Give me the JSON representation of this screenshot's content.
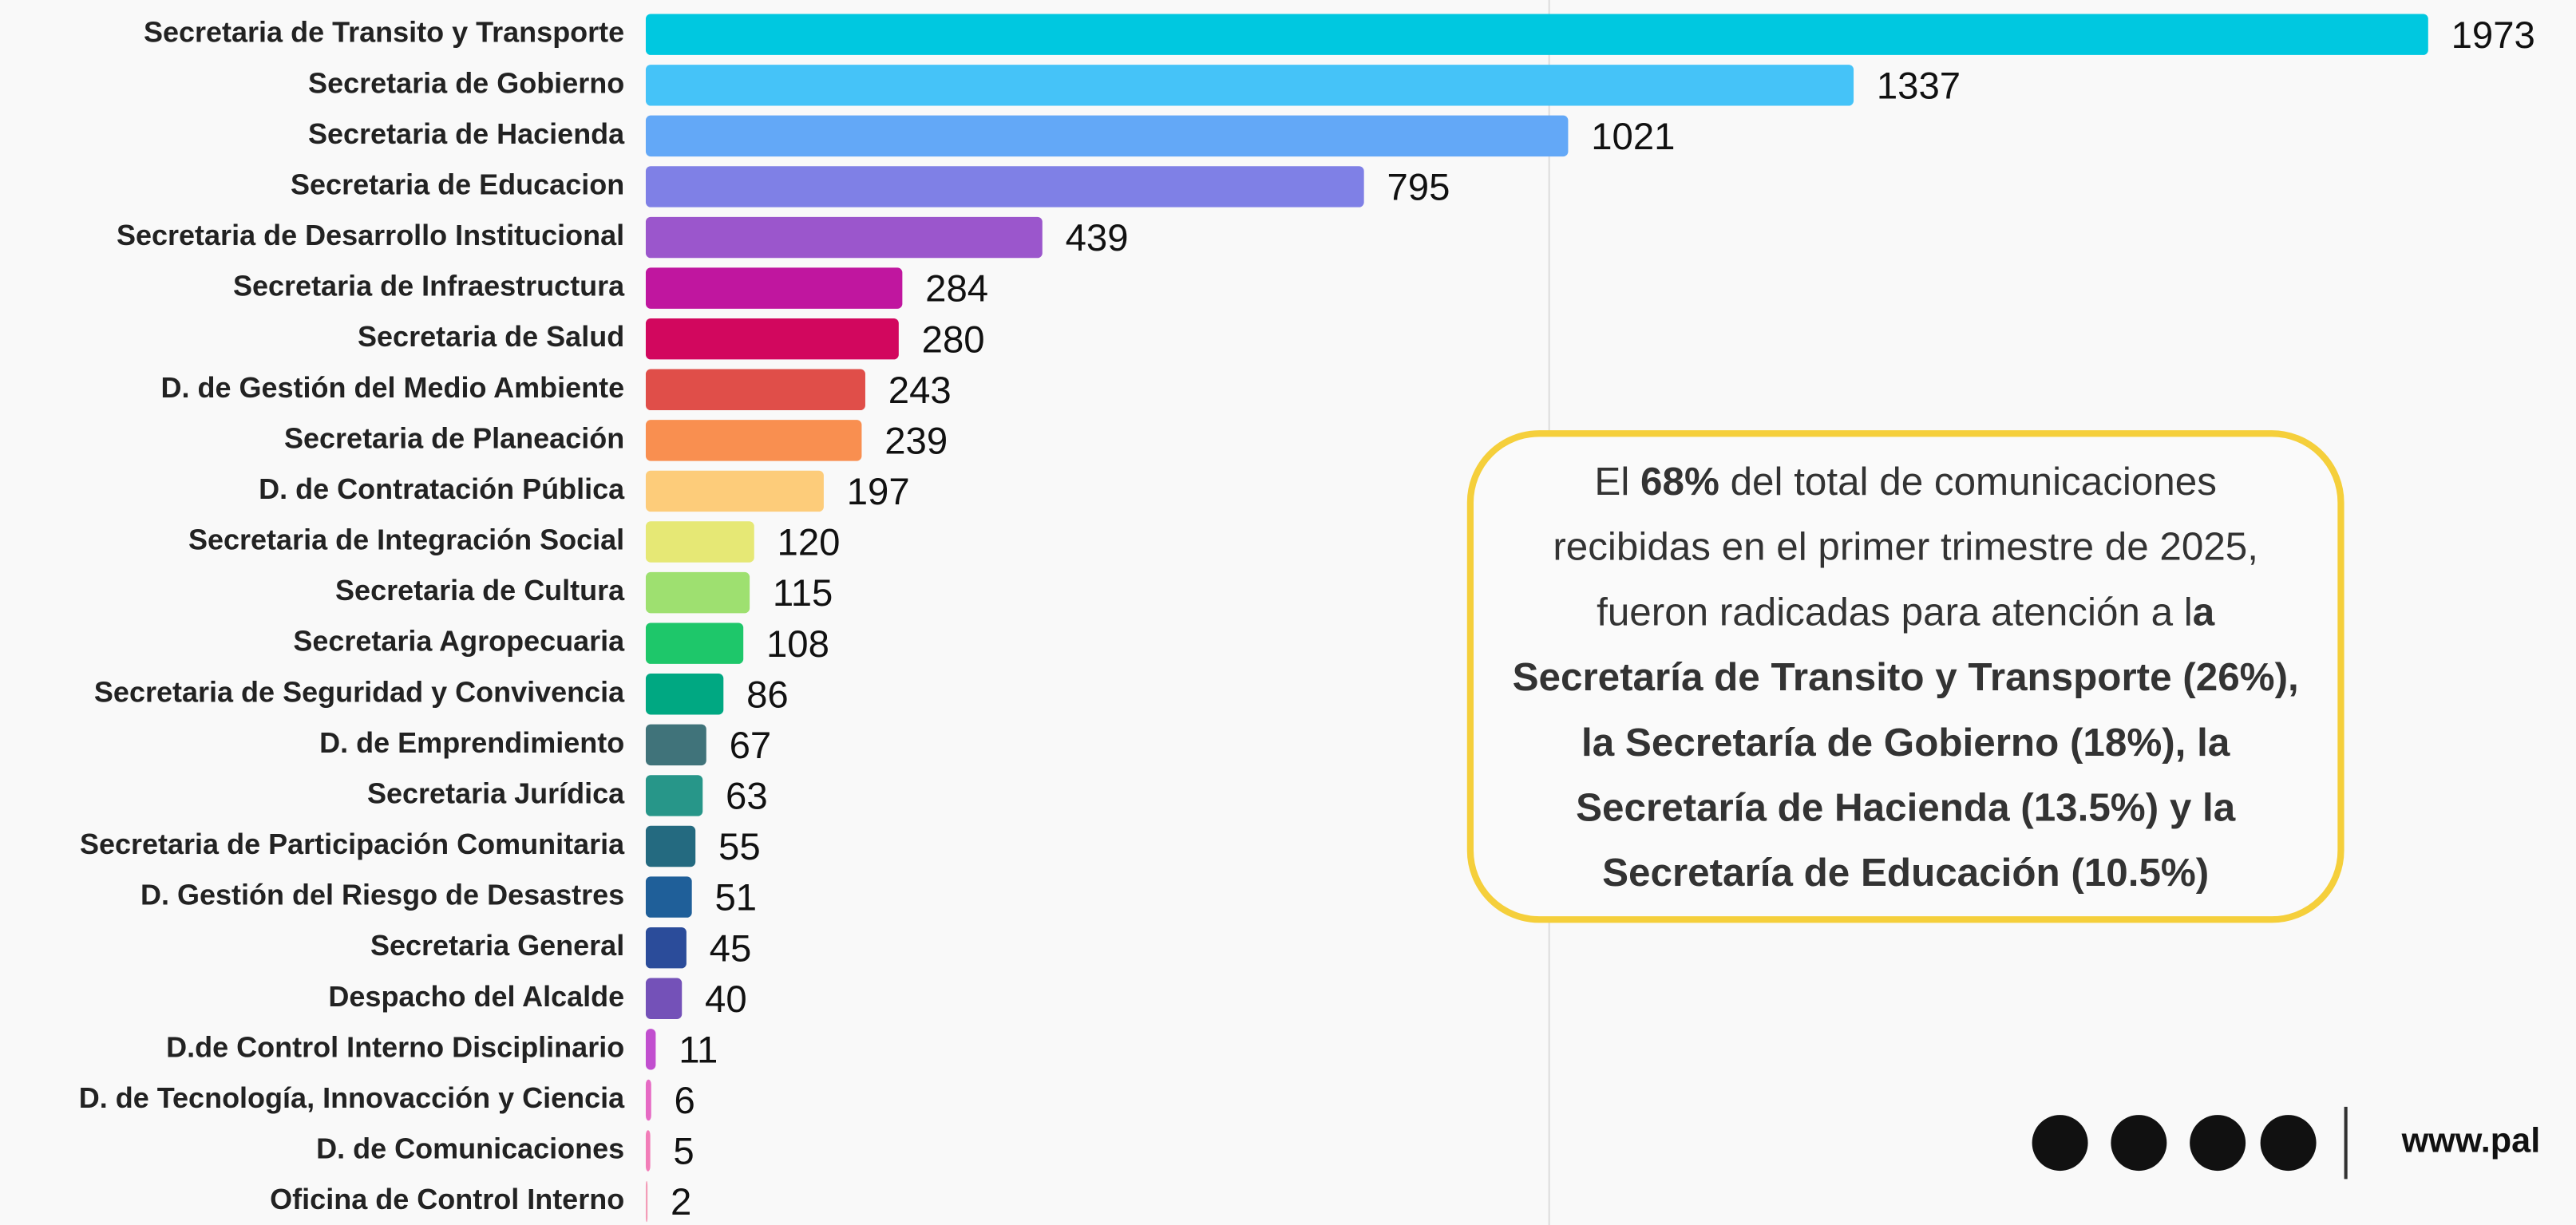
{
  "chart_data": {
    "type": "bar",
    "orientation": "horizontal",
    "categories": [
      "Secretaria de Transito y Transporte",
      "Secretaria de Gobierno",
      "Secretaria de Hacienda",
      "Secretaria de Educacion",
      "Secretaria de Desarrollo Institucional",
      "Secretaria de Infraestructura",
      "Secretaria de Salud",
      "D. de Gestión del Medio Ambiente",
      "Secretaria de Planeación",
      "D. de Contratación Pública",
      "Secretaria de Integración Social",
      "Secretaria de Cultura",
      "Secretaria Agropecuaria",
      "Secretaria de Seguridad y Convivencia",
      "D. de Emprendimiento",
      "Secretaria Jurídica",
      "Secretaria de Participación Comunitaria",
      "D. Gestión del Riesgo de Desastres",
      "Secretaria General",
      "Despacho del Alcalde",
      "D.de Control Interno Disciplinario",
      "D. de Tecnología, Innovacción y Ciencia",
      "D. de Comunicaciones",
      "Oficina de Control Interno"
    ],
    "values": [
      1973,
      1337,
      1021,
      795,
      439,
      284,
      280,
      243,
      239,
      197,
      120,
      115,
      108,
      86,
      67,
      63,
      55,
      51,
      45,
      40,
      11,
      6,
      5,
      2
    ],
    "colors": [
      "#00c8e0",
      "#45c3f8",
      "#63a8f7",
      "#7f80e6",
      "#9b56cc",
      "#c0169f",
      "#d2075e",
      "#e04e49",
      "#f98f50",
      "#fdcc7a",
      "#e6e875",
      "#9ee070",
      "#1ec76a",
      "#00a882",
      "#40737a",
      "#279689",
      "#246a80",
      "#1f5f99",
      "#2b4c9a",
      "#7451b8",
      "#c14fcf",
      "#e66ac4",
      "#f27db8",
      "#f39db8"
    ],
    "xlim": [
      0,
      2100
    ],
    "xticks": [
      1000
    ],
    "grid": true,
    "annotation": [
      [
        {
          "text": "El "
        },
        {
          "text": "68%",
          "bold": true
        },
        {
          "text": " del total de comunicaciones"
        }
      ],
      [
        {
          "text": "recibidas en el primer trimestre de 2025,"
        }
      ],
      [
        {
          "text": "fueron radicadas para atención a l"
        },
        {
          "text": "a",
          "bold": true
        }
      ],
      [
        {
          "text": "Secretaría de Transito y Transporte (26%),",
          "bold": true
        }
      ],
      [
        {
          "text": "la Secretaría de Gobierno (18%), la",
          "bold": true
        }
      ],
      [
        {
          "text": "Secretaría de Hacienda (13.5%) y la",
          "bold": true
        }
      ],
      [
        {
          "text": "Secretaría de Educación (10.5%)",
          "bold": true
        }
      ]
    ],
    "footer": "www.pal"
  }
}
